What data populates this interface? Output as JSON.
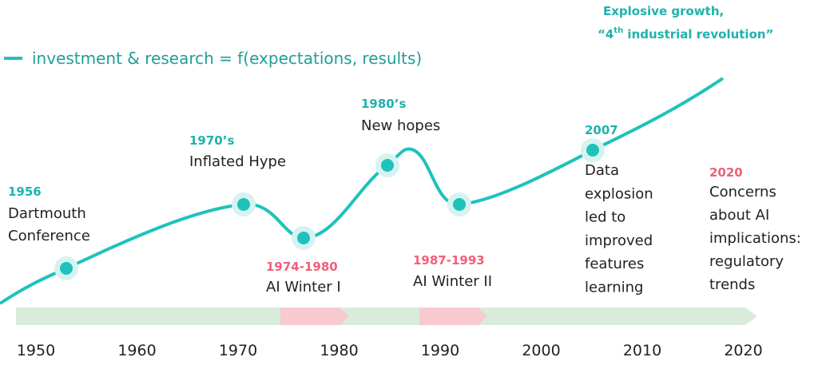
{
  "legend": "investment & research = f(expectations, results)",
  "events": [
    {
      "label": "1956",
      "lines": [
        "Dartmouth",
        "Conference"
      ]
    },
    {
      "label": "1970’s",
      "lines": [
        "Inflated Hype"
      ]
    },
    {
      "label": "1974-1980",
      "lines": [
        "AI Winter I"
      ]
    },
    {
      "label": "1980’s",
      "lines": [
        "New hopes"
      ]
    },
    {
      "label": "1987-1993",
      "lines": [
        "AI Winter II"
      ]
    },
    {
      "label": "2007",
      "lines": [
        "Data",
        "explosion",
        "led to",
        "improved",
        "features",
        "learning"
      ]
    },
    {
      "label": "2020",
      "lines": [
        "Concerns",
        "about AI",
        "implications:",
        "regulatory",
        "trends"
      ]
    }
  ],
  "headline": {
    "line1": "Explosive growth,",
    "line2_start": "“4",
    "line2_sup": "th",
    "line2_end": " industrial revolution”"
  },
  "axis_labels": [
    "1950",
    "1960",
    "1970",
    "1980",
    "1990",
    "2000",
    "2010",
    "2020"
  ]
}
